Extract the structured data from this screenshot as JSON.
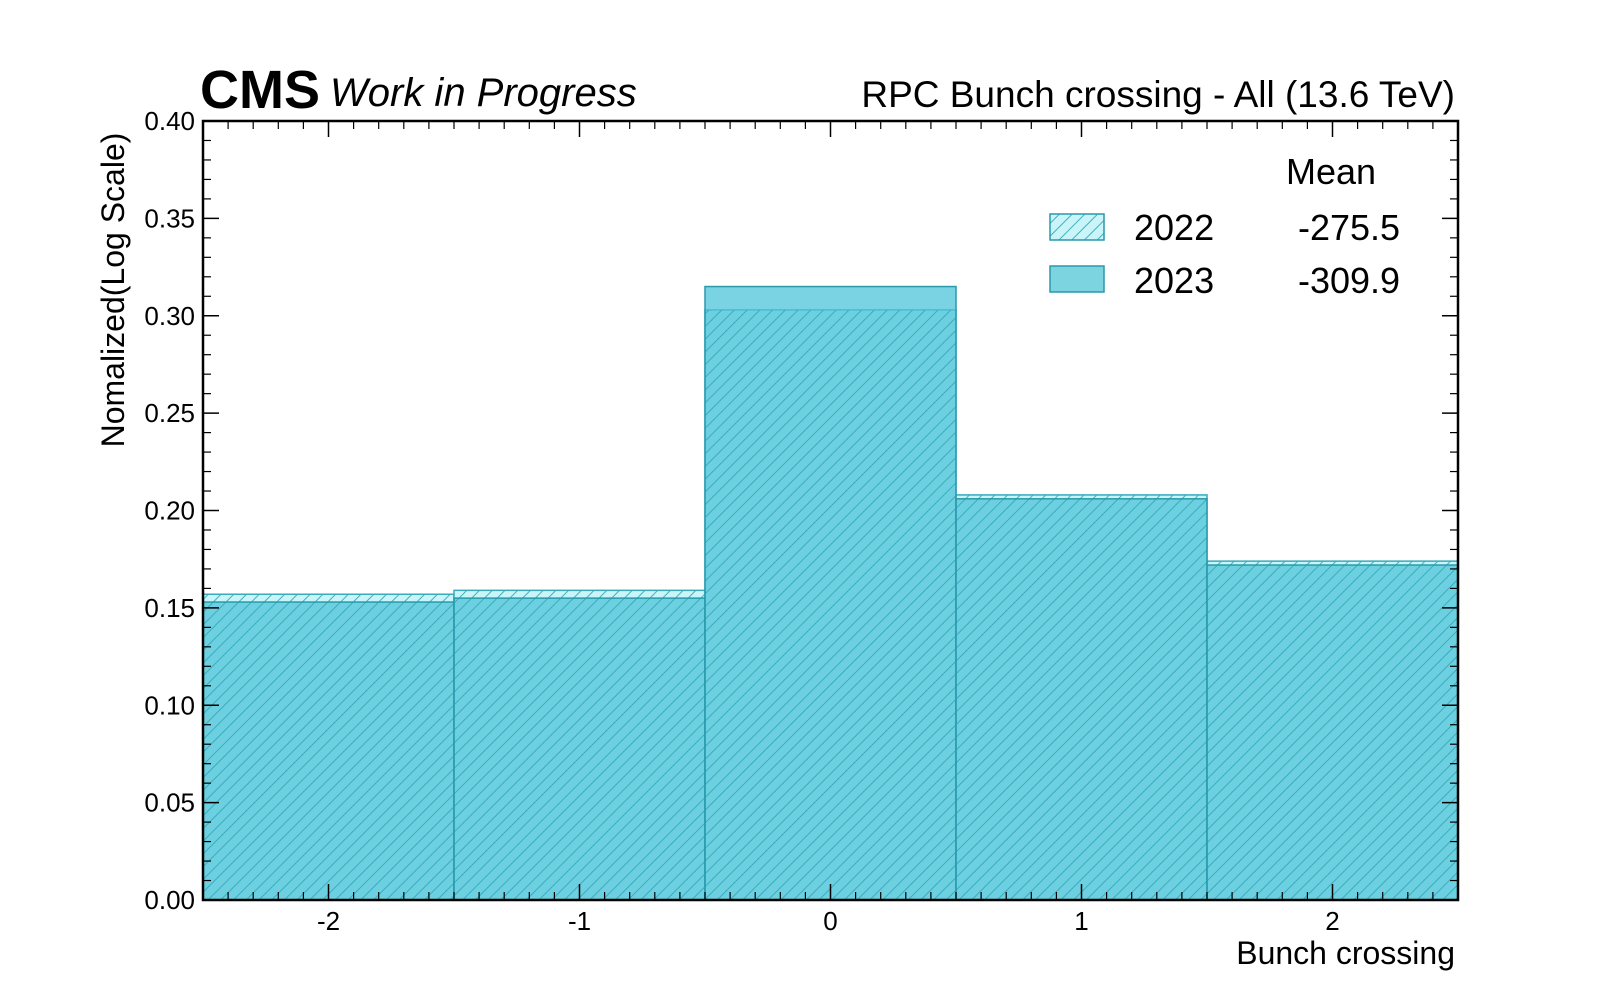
{
  "header": {
    "experiment": "CMS",
    "status": "Work in Progress",
    "title": "RPC Bunch crossing - All (13.6 TeV)"
  },
  "chart_data": {
    "type": "bar",
    "histogram": true,
    "xlabel": "Bunch crossing",
    "ylabel": "Nomalized(Log Scale)",
    "categories": [
      -2,
      -1,
      0,
      1,
      2
    ],
    "x_tick_labels": [
      "-2",
      "-1",
      "0",
      "1",
      "2"
    ],
    "xlim": [
      -2.5,
      2.5
    ],
    "ylim": [
      0,
      0.4
    ],
    "y_tick_labels": [
      "0.00",
      "0.05",
      "0.10",
      "0.15",
      "0.20",
      "0.25",
      "0.30",
      "0.35",
      "0.40"
    ],
    "grid": false,
    "legend_position": "top-right",
    "legend_header": "Mean",
    "series": [
      {
        "name": "2022",
        "mean": "-275.5",
        "style": "hatched",
        "color": "#2ab0c0",
        "values": [
          0.157,
          0.159,
          0.303,
          0.208,
          0.174
        ]
      },
      {
        "name": "2023",
        "mean": "-309.9",
        "style": "filled",
        "color": "#5bc8da",
        "values": [
          0.153,
          0.155,
          0.315,
          0.206,
          0.172
        ]
      }
    ]
  }
}
